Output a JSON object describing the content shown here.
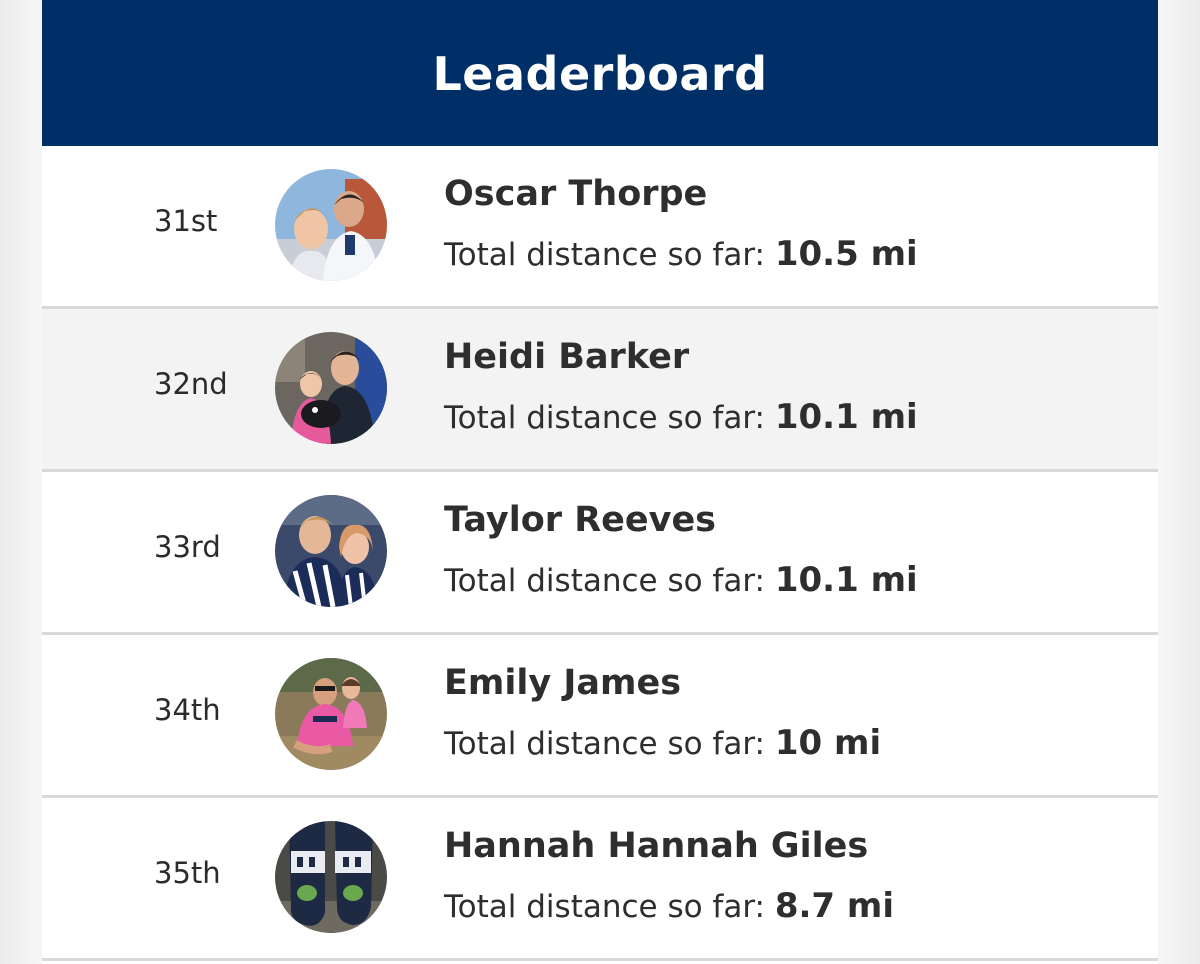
{
  "header": {
    "title": "Leaderboard"
  },
  "distance_label": "Total distance so far:",
  "colors": {
    "header_bg": "#002e66",
    "row_alt_bg": "#f3f3f3"
  },
  "entries": [
    {
      "rank": "31st",
      "name": "Oscar Thorpe",
      "distance": "10.5 mi",
      "avatar": "photo-two-boys-avatar-icon"
    },
    {
      "rank": "32nd",
      "name": "Heidi Barker",
      "distance": "10.1 mi",
      "avatar": "photo-girl-with-player-avatar-icon"
    },
    {
      "rank": "33rd",
      "name": "Taylor Reeves",
      "distance": "10.1 mi",
      "avatar": "photo-two-fans-avatar-icon"
    },
    {
      "rank": "34th",
      "name": "Emily James",
      "distance": "10 mi",
      "avatar": "photo-man-pink-shirt-avatar-icon"
    },
    {
      "rank": "35th",
      "name": "Hannah Hannah Giles",
      "distance": "8.7 mi",
      "avatar": "photo-socks-avatar-icon"
    }
  ]
}
